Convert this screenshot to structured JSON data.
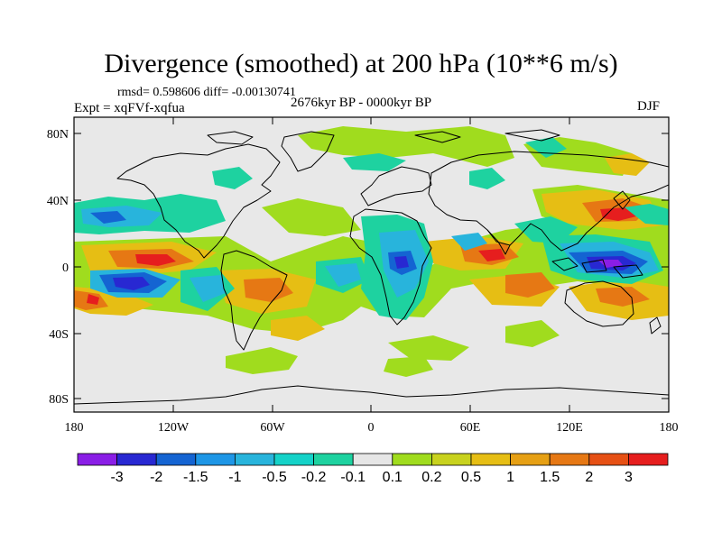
{
  "title": "Divergence (smoothed) at 200 hPa (10**6 m/s)",
  "stats": "rmsd= 0.598606 diff= -0.00130741",
  "experiment": "Expt = xqFVf-xqfua",
  "period": "2676kyr BP - 0000kyr BP",
  "season": "DJF",
  "map": {
    "lat_labels": [
      "80N",
      "40N",
      "0",
      "40S",
      "80S"
    ],
    "lon_labels": [
      "180",
      "120W",
      "60W",
      "0",
      "60E",
      "120E",
      "180"
    ],
    "background_color": "#e8e8e8",
    "coastline_color": "#000000"
  },
  "colorbar": {
    "colors": [
      "#8a1ee6",
      "#2828d2",
      "#1464d2",
      "#1e96e6",
      "#28b4dc",
      "#14d2c8",
      "#1ed2a0",
      "#e6e6e6",
      "#a0dc1e",
      "#c8d21e",
      "#e6be14",
      "#e6a014",
      "#e67814",
      "#e65014",
      "#e61e1e"
    ],
    "labels": [
      "-3",
      "-2",
      "-1.5",
      "-1",
      "-0.5",
      "-0.2",
      "-0.1",
      "0.1",
      "0.2",
      "0.5",
      "1",
      "1.5",
      "2",
      "3"
    ]
  }
}
